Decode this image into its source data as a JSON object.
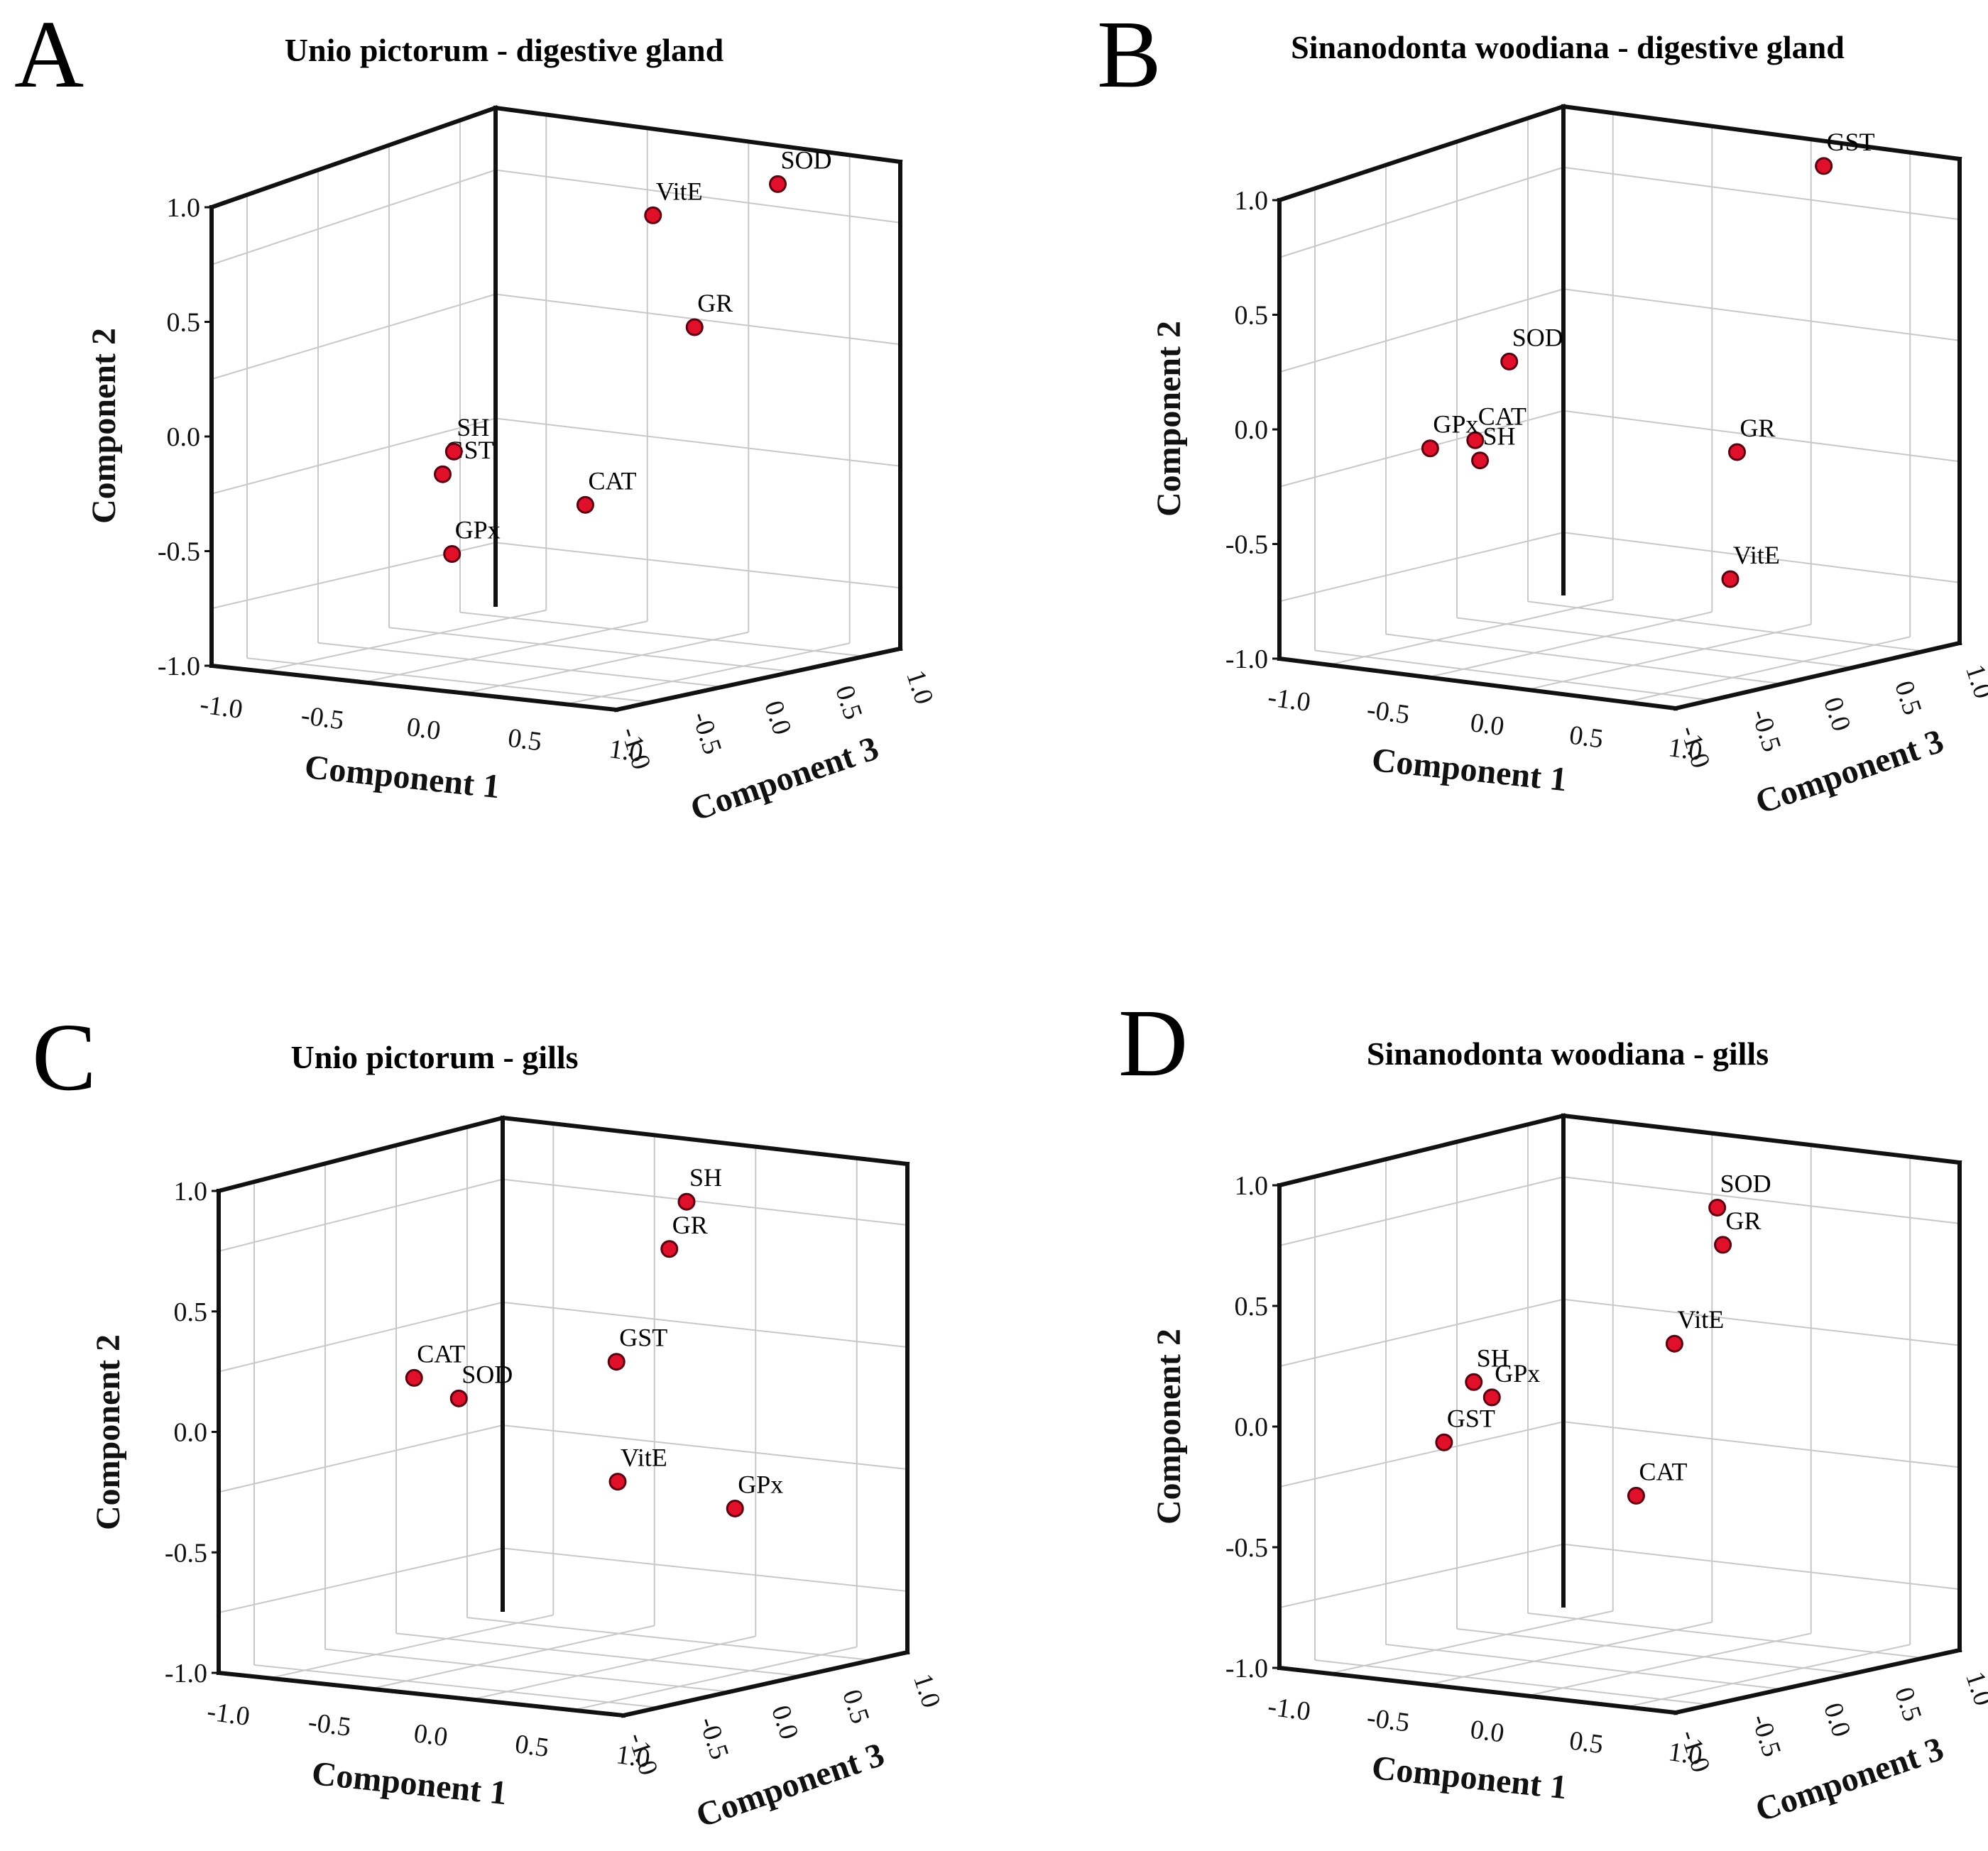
{
  "figure": {
    "colors": {
      "point_fill": "#e0102a",
      "point_stroke": "#5a0010",
      "grid": "#c8c8c8",
      "frame": "#111111"
    }
  },
  "chart_data": [
    {
      "panel": "A",
      "title": "Unio pictorum - digestive gland",
      "type": "scatter3d",
      "xlabel": "Component 1",
      "ylabel": "Component 2",
      "zlabel": "Component 3",
      "xlim": [
        -1.0,
        1.0
      ],
      "ylim": [
        -1.0,
        1.0
      ],
      "zlim": [
        -1.0,
        1.0
      ],
      "x_ticks": [
        "-1.0",
        "-0.5",
        "0.0",
        "0.5",
        "1.0"
      ],
      "y_ticks": [
        "1.0",
        "0.5",
        "0.0",
        "-0.5",
        "-1.0"
      ],
      "z_ticks": [
        "1.0",
        "0.5",
        "0.0",
        "-0.5",
        "-1.0"
      ],
      "points": [
        {
          "label": "SOD",
          "x": 0.28,
          "y": 0.95,
          "z": -0.9
        },
        {
          "label": "VitE",
          "x": -0.1,
          "y": 0.84,
          "z": -0.55
        },
        {
          "label": "GR",
          "x": 0.05,
          "y": 0.38,
          "z": -0.65
        },
        {
          "label": "CAT",
          "x": 0.25,
          "y": -0.42,
          "z": 0.03
        },
        {
          "label": "GST",
          "x": 0.2,
          "y": -0.35,
          "z": 0.7
        },
        {
          "label": "SH",
          "x": 0.45,
          "y": -0.3,
          "z": 0.82
        },
        {
          "label": "GPx",
          "x": 0.38,
          "y": -0.7,
          "z": 0.78
        }
      ]
    },
    {
      "panel": "B",
      "title": "Sinanodonta woodiana - digestive gland",
      "type": "scatter3d",
      "xlabel": "Component 1",
      "ylabel": "Component 2",
      "zlabel": "Component 3",
      "xlim": [
        -1.0,
        1.0
      ],
      "ylim": [
        -1.0,
        1.0
      ],
      "zlim": [
        -1.0,
        1.0
      ],
      "x_ticks": [
        "-1.0",
        "-0.5",
        "0.0",
        "0.5",
        "1.0"
      ],
      "y_ticks": [
        "1.0",
        "0.5",
        "0.0",
        "-0.5",
        "-1.0"
      ],
      "z_ticks": [
        "1.0",
        "0.5",
        "0.0",
        "-0.5",
        "-1.0"
      ],
      "points": [
        {
          "label": "GST",
          "x": 0.95,
          "y": 0.9,
          "z": -0.35
        },
        {
          "label": "SOD",
          "x": 0.2,
          "y": 0.09,
          "z": 0.7
        },
        {
          "label": "GR",
          "x": 0.13,
          "y": -0.15,
          "z": -0.5
        },
        {
          "label": "CAT",
          "x": 0.1,
          "y": -0.23,
          "z": 0.8
        },
        {
          "label": "GPx",
          "x": 0.02,
          "y": -0.27,
          "z": 0.97
        },
        {
          "label": "SH",
          "x": 0.05,
          "y": -0.3,
          "z": 0.74
        },
        {
          "label": "VitE",
          "x": 0.78,
          "y": -0.81,
          "z": 0.0
        }
      ]
    },
    {
      "panel": "C",
      "title": "Unio pictorum - gills",
      "type": "scatter3d",
      "xlabel": "Component 1",
      "ylabel": "Component 2",
      "zlabel": "Component 3",
      "xlim": [
        -1.0,
        1.0
      ],
      "ylim": [
        -1.0,
        1.0
      ],
      "zlim": [
        -1.0,
        1.0
      ],
      "x_ticks": [
        "-1.0",
        "-0.5",
        "0.0",
        "0.5",
        "1.0"
      ],
      "y_ticks": [
        "1.0",
        "0.5",
        "0.0",
        "-0.5",
        "-1.0"
      ],
      "z_ticks": [
        "1.0",
        "0.5",
        "0.0",
        "-0.5",
        "-1.0"
      ],
      "points": [
        {
          "label": "SH",
          "x": 0.3,
          "y": 0.87,
          "z": -0.4
        },
        {
          "label": "GR",
          "x": 0.25,
          "y": 0.68,
          "z": -0.35
        },
        {
          "label": "GST",
          "x": -0.55,
          "y": 0.35,
          "z": -0.65
        },
        {
          "label": "GPx",
          "x": 0.0,
          "y": -0.3,
          "z": -0.85
        },
        {
          "label": "VitE",
          "x": 0.1,
          "y": -0.26,
          "z": -0.2
        },
        {
          "label": "SOD",
          "x": 0.05,
          "y": 0.02,
          "z": 0.55
        },
        {
          "label": "CAT",
          "x": 0.02,
          "y": 0.09,
          "z": 0.75
        }
      ]
    },
    {
      "panel": "D",
      "title": "Sinanodonta woodiana - gills",
      "type": "scatter3d",
      "xlabel": "Component 1",
      "ylabel": "Component 2",
      "zlabel": "Component 3",
      "xlim": [
        -1.0,
        1.0
      ],
      "ylim": [
        -1.0,
        1.0
      ],
      "zlim": [
        -1.0,
        1.0
      ],
      "x_ticks": [
        "-1.0",
        "-0.5",
        "0.0",
        "0.5",
        "1.0"
      ],
      "y_ticks": [
        "1.0",
        "0.5",
        "0.0",
        "-0.5",
        "-1.0"
      ],
      "z_ticks": [
        "1.0",
        "0.5",
        "0.0",
        "-0.5",
        "-1.0"
      ],
      "points": [
        {
          "label": "SOD",
          "x": 0.2,
          "y": 0.85,
          "z": -0.35
        },
        {
          "label": "GR",
          "x": 0.1,
          "y": 0.72,
          "z": -0.45
        },
        {
          "label": "VitE",
          "x": -0.45,
          "y": 0.4,
          "z": -0.6
        },
        {
          "label": "CAT",
          "x": -0.65,
          "y": -0.2,
          "z": -0.55
        },
        {
          "label": "GPx",
          "x": 0.05,
          "y": 0.0,
          "z": 0.68
        },
        {
          "label": "SH",
          "x": 0.02,
          "y": 0.06,
          "z": 0.75
        },
        {
          "label": "GST",
          "x": 0.02,
          "y": -0.2,
          "z": 0.9
        }
      ]
    }
  ]
}
